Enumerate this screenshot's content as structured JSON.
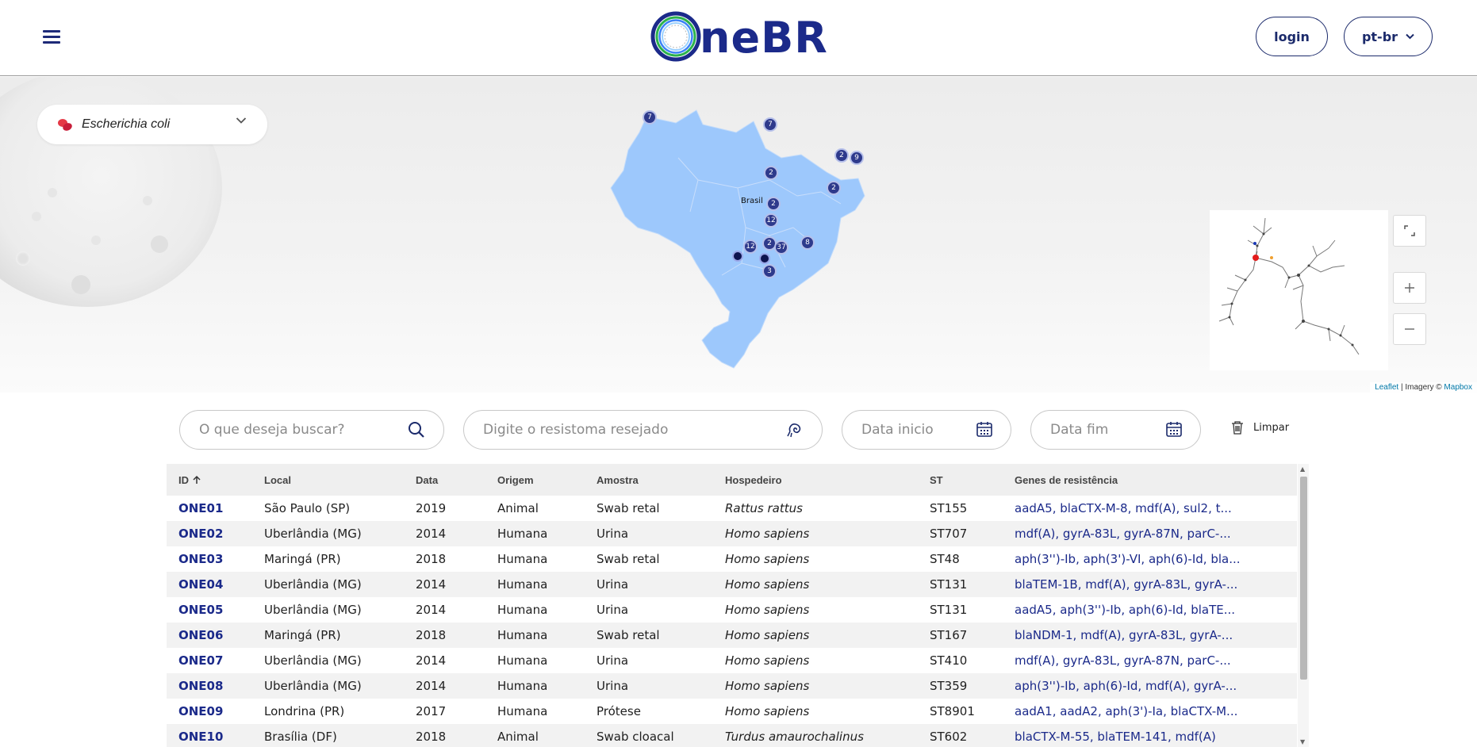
{
  "header": {
    "logo_text": "neBR",
    "login_label": "login",
    "language": "pt-br"
  },
  "map": {
    "species": "Escherichia coli",
    "country_label": "Brasil",
    "clusters": [
      "7",
      "7",
      "2",
      "9",
      "2",
      "2",
      "2",
      "12",
      "2",
      "37",
      "12",
      "8",
      "3"
    ],
    "attribution_leaflet": "Leaflet",
    "attribution_sep": " | Imagery © ",
    "attribution_mapbox": "Mapbox",
    "colors": {
      "land": "#9dc8fc",
      "cluster": "#2e3a8c"
    }
  },
  "filters": {
    "search_placeholder": "O que deseja buscar?",
    "resistome_placeholder": "Digite o resistoma resejado",
    "date_start_placeholder": "Data inicio",
    "date_end_placeholder": "Data fim",
    "clear_label": "Limpar"
  },
  "table": {
    "headers": {
      "id": "ID",
      "local": "Local",
      "data": "Data",
      "origem": "Origem",
      "amostra": "Amostra",
      "hospedeiro": "Hospedeiro",
      "st": "ST",
      "genes": "Genes de resistência"
    },
    "rows": [
      {
        "id": "ONE01",
        "local": "São Paulo (SP)",
        "data": "2019",
        "origem": "Animal",
        "amostra": "Swab retal",
        "hospedeiro": "Rattus rattus",
        "st": "ST155",
        "genes": "aadA5, blaCTX-M-8, mdf(A), sul2, t..."
      },
      {
        "id": "ONE02",
        "local": "Uberlândia (MG)",
        "data": "2014",
        "origem": "Humana",
        "amostra": "Urina",
        "hospedeiro": "Homo sapiens",
        "st": "ST707",
        "genes": "mdf(A), gyrA-83L, gyrA-87N, parC-..."
      },
      {
        "id": "ONE03",
        "local": "Maringá (PR)",
        "data": "2018",
        "origem": "Humana",
        "amostra": "Swab retal",
        "hospedeiro": "Homo sapiens",
        "st": "ST48",
        "genes": "aph(3'')-Ib, aph(3')-VI, aph(6)-Id, bla..."
      },
      {
        "id": "ONE04",
        "local": "Uberlândia (MG)",
        "data": "2014",
        "origem": "Humana",
        "amostra": "Urina",
        "hospedeiro": "Homo sapiens",
        "st": "ST131",
        "genes": "blaTEM-1B, mdf(A), gyrA-83L, gyrA-..."
      },
      {
        "id": "ONE05",
        "local": "Uberlândia (MG)",
        "data": "2014",
        "origem": "Humana",
        "amostra": "Urina",
        "hospedeiro": "Homo sapiens",
        "st": "ST131",
        "genes": "aadA5, aph(3'')-Ib, aph(6)-Id, blaTE..."
      },
      {
        "id": "ONE06",
        "local": "Maringá (PR)",
        "data": "2018",
        "origem": "Humana",
        "amostra": "Swab retal",
        "hospedeiro": "Homo sapiens",
        "st": "ST167",
        "genes": "blaNDM-1, mdf(A), gyrA-83L, gyrA-..."
      },
      {
        "id": "ONE07",
        "local": "Uberlândia (MG)",
        "data": "2014",
        "origem": "Humana",
        "amostra": "Urina",
        "hospedeiro": "Homo sapiens",
        "st": "ST410",
        "genes": "mdf(A), gyrA-83L, gyrA-87N, parC-..."
      },
      {
        "id": "ONE08",
        "local": "Uberlândia (MG)",
        "data": "2014",
        "origem": "Humana",
        "amostra": "Urina",
        "hospedeiro": "Homo sapiens",
        "st": "ST359",
        "genes": "aph(3'')-Ib, aph(6)-Id, mdf(A), gyrA-..."
      },
      {
        "id": "ONE09",
        "local": "Londrina (PR)",
        "data": "2017",
        "origem": "Humana",
        "amostra": "Prótese",
        "hospedeiro": "Homo sapiens",
        "st": "ST8901",
        "genes": "aadA1, aadA2, aph(3')-Ia, blaCTX-M..."
      },
      {
        "id": "ONE10",
        "local": "Brasília (DF)",
        "data": "2018",
        "origem": "Animal",
        "amostra": "Swab cloacal",
        "hospedeiro": "Turdus amaurochalinus",
        "st": "ST602",
        "genes": "blaCTX-M-55, blaTEM-141, mdf(A)"
      }
    ]
  }
}
